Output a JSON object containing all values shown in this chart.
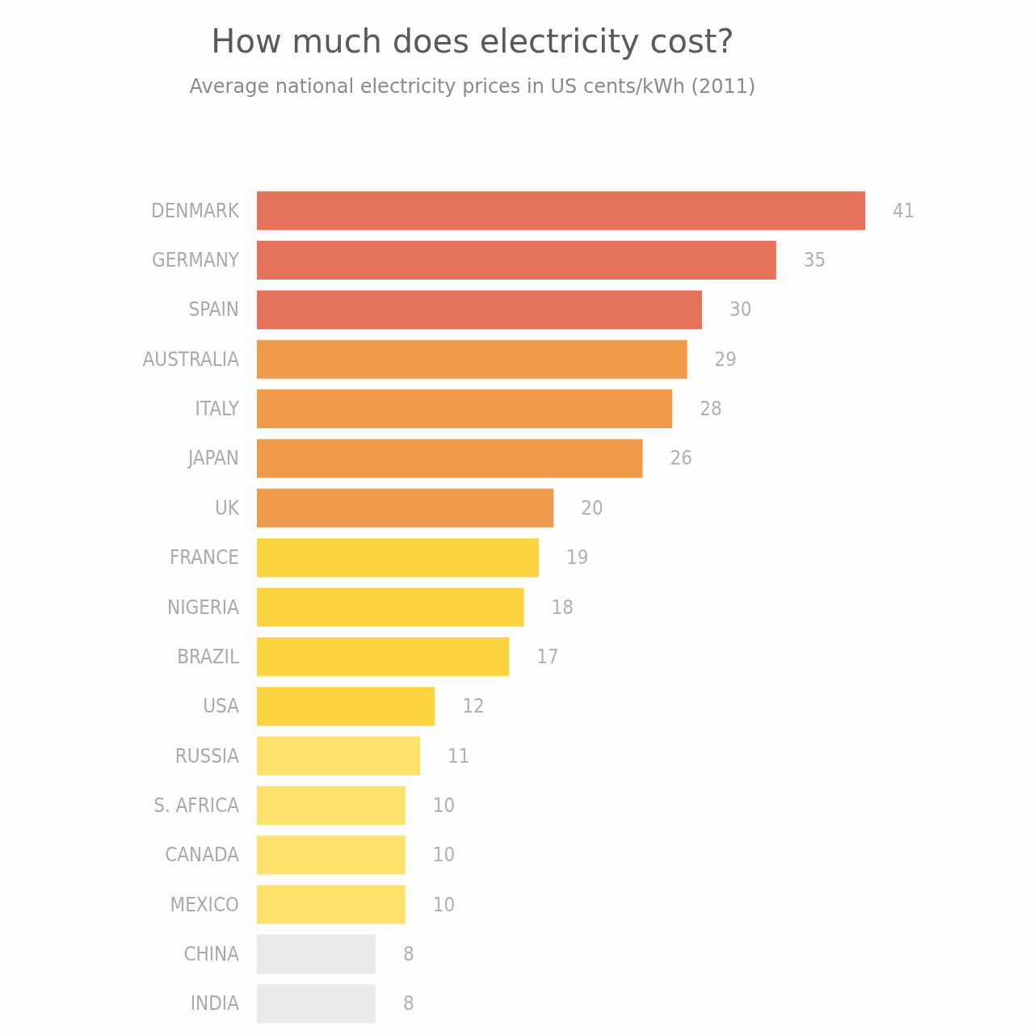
{
  "chart_data": {
    "type": "bar",
    "orientation": "horizontal",
    "title": "How much does electricity cost?",
    "subtitle": "Average national electricity prices in US cents/kWh (2011)",
    "categories": [
      "DENMARK",
      "GERMANY",
      "SPAIN",
      "AUSTRALIA",
      "ITALY",
      "JAPAN",
      "UK",
      "FRANCE",
      "NIGERIA",
      "BRAZIL",
      "USA",
      "RUSSIA",
      "S. AFRICA",
      "CANADA",
      "MEXICO",
      "CHINA",
      "INDIA"
    ],
    "values": [
      41,
      35,
      30,
      29,
      28,
      26,
      20,
      19,
      18,
      17,
      12,
      11,
      10,
      10,
      10,
      8,
      8
    ],
    "colors": [
      "#e6725b",
      "#e6725b",
      "#e6725b",
      "#f09a4b",
      "#f09a4b",
      "#f09a4b",
      "#f09a4b",
      "#fcd441",
      "#fcd441",
      "#fcd441",
      "#fcd441",
      "#fde16a",
      "#fde16a",
      "#fde16a",
      "#fde16a",
      "#e9e9eb",
      "#e9e9eb"
    ],
    "data_labels": true
  }
}
